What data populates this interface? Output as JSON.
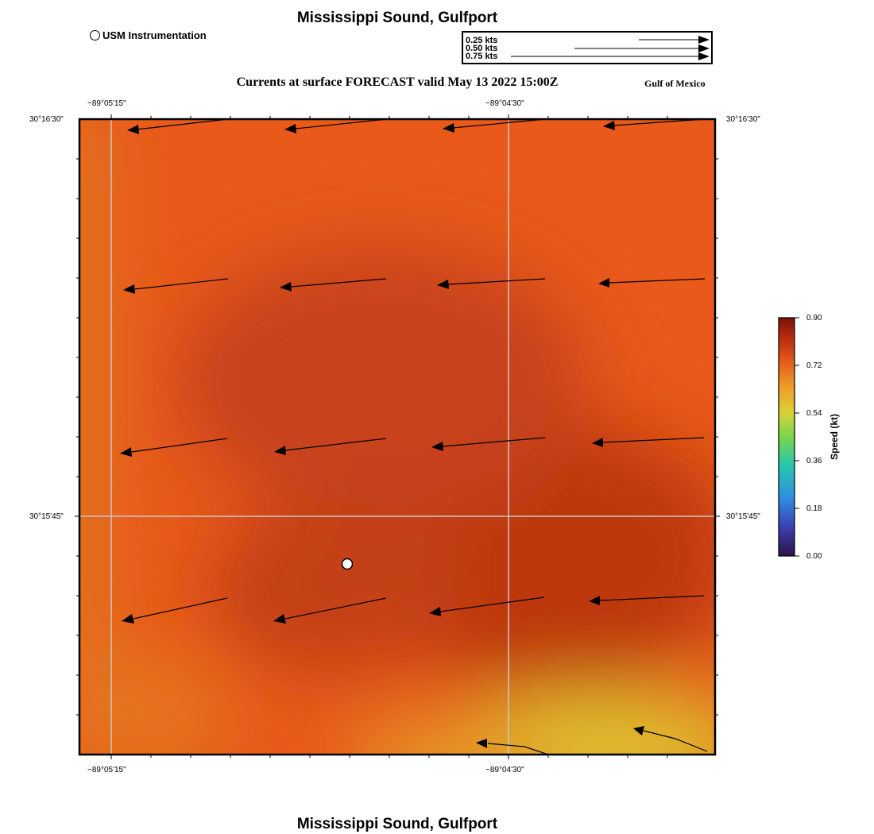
{
  "header": {
    "title": "Mississippi Sound, Gulfport",
    "marker_legend": "USM Instrumentation",
    "subtitle": "Currents at surface FORECAST valid May 13 2022 15:00Z",
    "region": "Gulf of Mexico"
  },
  "vector_legend": {
    "rows": [
      {
        "label": "0.25 kts",
        "speed_kt": 0.25
      },
      {
        "label": "0.50 kts",
        "speed_kt": 0.5
      },
      {
        "label": "0.75 kts",
        "speed_kt": 0.75
      }
    ]
  },
  "axes": {
    "top_ticks": [
      "−89°05'15\"",
      "−89°04'30\""
    ],
    "bottom_ticks": [
      "−89°05'15\"",
      "−89°04'30\""
    ],
    "left_ticks": [
      "30°16'30\"",
      "30°15'45\""
    ],
    "right_ticks": [
      "30°16'30\"",
      "30°15'45\""
    ]
  },
  "colorbar": {
    "label": "Speed (kt)",
    "ticks": [
      "0.90",
      "0.72",
      "0.54",
      "0.36",
      "0.18",
      "0.00"
    ],
    "min": 0.0,
    "max": 0.9
  },
  "station": {
    "name": "USM Instrumentation"
  },
  "footer": {
    "title": "Mississippi Sound, Gulfport"
  },
  "colors": {
    "field_base": "#e8591a",
    "field_dark": "#c43d12",
    "field_light": "#e07a22",
    "field_yellow": "#dfbf2e",
    "grid": "#c8c8c8"
  }
}
